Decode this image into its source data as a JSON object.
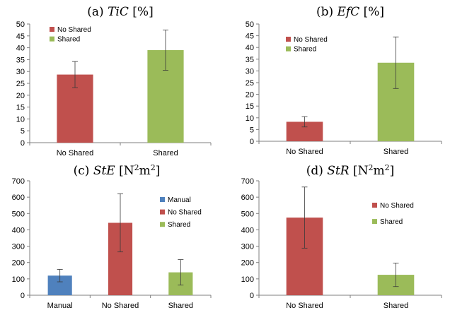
{
  "chart_data": [
    {
      "type": "bar",
      "title_prefix": "(a)",
      "title_var": "TiC",
      "title_unit": "[%]",
      "title_unit_sup": [],
      "categories": [
        "No Shared",
        "Shared"
      ],
      "values": [
        28.7,
        39.0
      ],
      "error": [
        5.5,
        8.5
      ],
      "colors": [
        "#c0504d",
        "#9bbb59"
      ],
      "legend": [
        "No Shared",
        "Shared"
      ],
      "legend_colors": [
        "#c0504d",
        "#9bbb59"
      ],
      "legend_position": "top-left",
      "ylim": [
        0,
        50
      ],
      "yticks": [
        0,
        5,
        10,
        15,
        20,
        25,
        30,
        35,
        40,
        45,
        50
      ],
      "grid": false
    },
    {
      "type": "bar",
      "title_prefix": "(b)",
      "title_var": "EfC",
      "title_unit": "[%]",
      "title_unit_sup": [],
      "categories": [
        "No Shared",
        "Shared"
      ],
      "values": [
        8.3,
        33.5
      ],
      "error": [
        2.2,
        11.0
      ],
      "colors": [
        "#c0504d",
        "#9bbb59"
      ],
      "legend": [
        "No Shared",
        "Shared"
      ],
      "legend_colors": [
        "#c0504d",
        "#9bbb59"
      ],
      "legend_position": "top-left",
      "ylim": [
        0,
        50
      ],
      "yticks": [
        0,
        5,
        10,
        15,
        20,
        25,
        30,
        35,
        40,
        45,
        50
      ],
      "grid": false
    },
    {
      "type": "bar",
      "title_prefix": "(c)",
      "title_var": "StE",
      "title_unit": "[N m ]",
      "title_unit_sup": [
        "2",
        "2"
      ],
      "categories": [
        "Manual",
        "No Shared",
        "Shared"
      ],
      "values": [
        120,
        443,
        140
      ],
      "error": [
        38,
        178,
        78
      ],
      "colors": [
        "#4f81bd",
        "#c0504d",
        "#9bbb59"
      ],
      "legend": [
        "Manual",
        "No Shared",
        "Shared"
      ],
      "legend_colors": [
        "#4f81bd",
        "#c0504d",
        "#9bbb59"
      ],
      "legend_position": "top-right",
      "ylim": [
        0,
        700
      ],
      "yticks": [
        0,
        100,
        200,
        300,
        400,
        500,
        600,
        700
      ],
      "grid": false
    },
    {
      "type": "bar",
      "title_prefix": "(d)",
      "title_var": "StR",
      "title_unit": "[N m ]",
      "title_unit_sup": [
        "2",
        "2"
      ],
      "categories": [
        "No Shared",
        "Shared"
      ],
      "values": [
        475,
        125
      ],
      "error": [
        187,
        72
      ],
      "colors": [
        "#c0504d",
        "#9bbb59"
      ],
      "legend": [
        "No Shared",
        "Shared"
      ],
      "legend_colors": [
        "#c0504d",
        "#9bbb59"
      ],
      "legend_position": "top-right",
      "ylim": [
        0,
        700
      ],
      "yticks": [
        0,
        100,
        200,
        300,
        400,
        500,
        600,
        700
      ],
      "grid": false
    }
  ]
}
